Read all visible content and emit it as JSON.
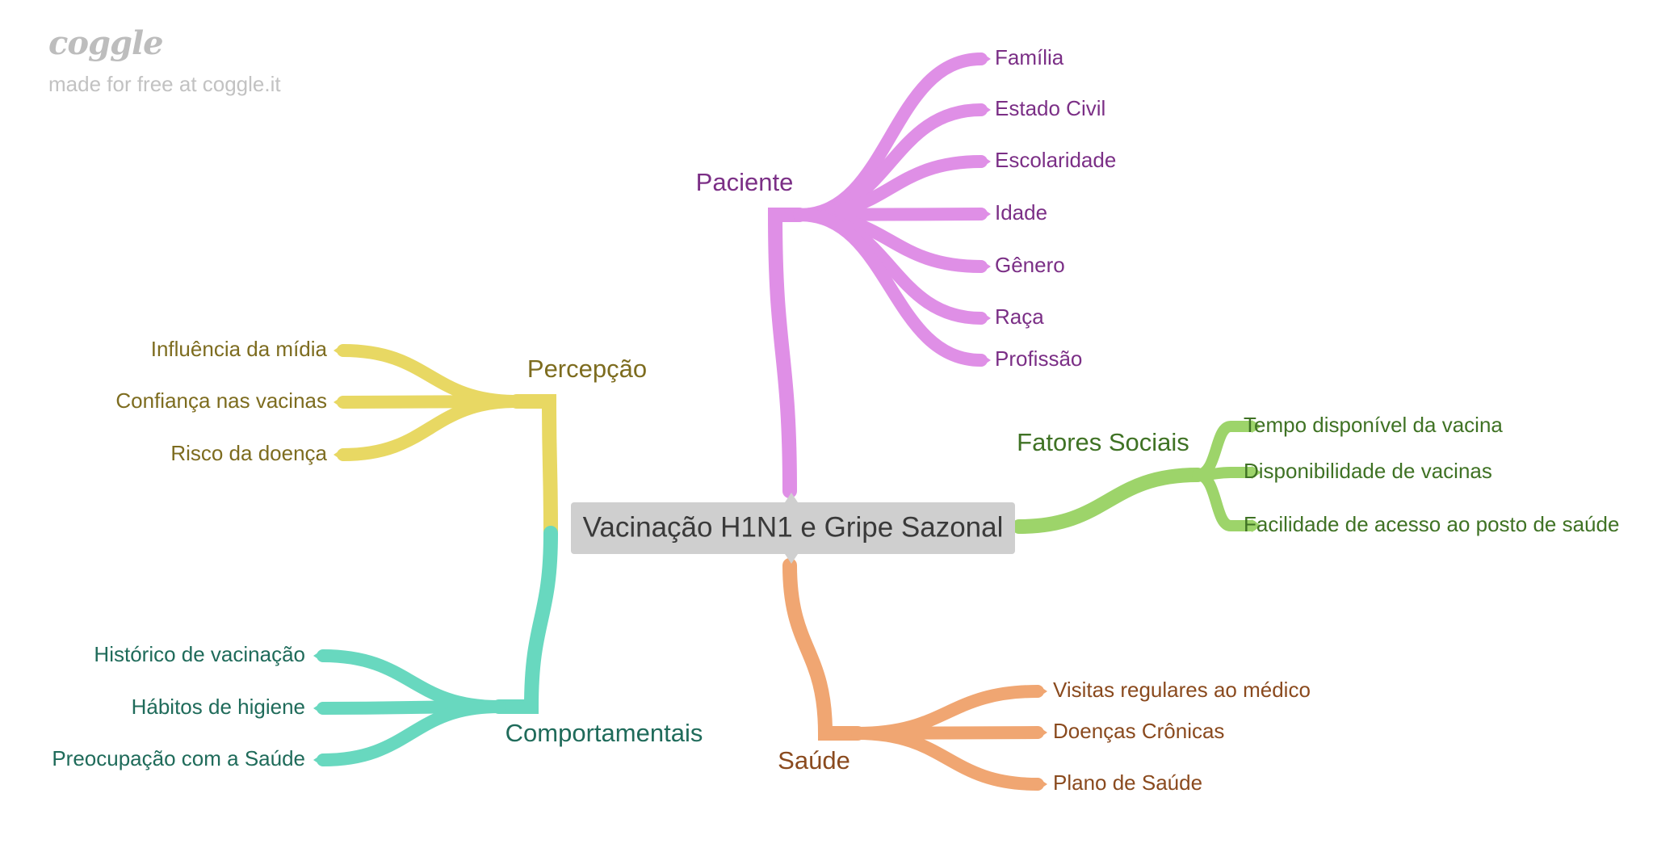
{
  "watermark": {
    "logo": "coggle",
    "subtitle": "made for free at coggle.it"
  },
  "map": {
    "central": "Vacinação H1N1 e Gripe Sazonal",
    "branches": [
      {
        "id": "paciente",
        "label": "Paciente",
        "color": "#df8fe6",
        "text_color": "#7b2f86",
        "children": [
          "Família",
          "Estado Civil",
          "Escolaridade",
          "Idade",
          "Gênero",
          "Raça",
          "Profissão"
        ]
      },
      {
        "id": "percepcao",
        "label": "Percepção",
        "color": "#e8d863",
        "text_color": "#7d6c1f",
        "children": [
          "Influência da mídia",
          "Confiança nas vacinas",
          "Risco da doença"
        ]
      },
      {
        "id": "comportamentais",
        "label": "Comportamentais",
        "color": "#68d8bf",
        "text_color": "#1f6b5a",
        "children": [
          "Histórico de vacinação",
          "Hábitos de higiene",
          "Preocupação com a Saúde"
        ]
      },
      {
        "id": "fatores-sociais",
        "label": "Fatores Sociais",
        "color": "#9dd46a",
        "text_color": "#3f7224",
        "children": [
          "Tempo disponível da vacina",
          "Disponibilidade de vacinas",
          "Facilidade de acesso ao posto de saúde"
        ]
      },
      {
        "id": "saude",
        "label": "Saúde",
        "color": "#f0a672",
        "text_color": "#8a4a1e",
        "children": [
          "Visitas regulares ao médico",
          "Doenças Crônicas",
          "Plano de Saúde"
        ]
      }
    ]
  }
}
